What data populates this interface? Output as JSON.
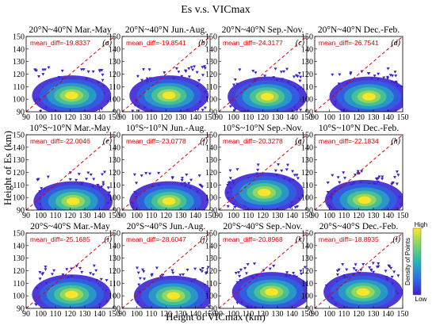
{
  "chart_data": {
    "type": "heatmap",
    "title": "Es v.s. VICmax",
    "xlabel": "Height of VICmax (km)",
    "ylabel": "Height of Es (km)",
    "xlim": [
      90,
      150
    ],
    "ylim": [
      90,
      150
    ],
    "xticks": [
      90,
      100,
      110,
      120,
      130,
      140,
      150
    ],
    "yticks": [
      90,
      100,
      110,
      120,
      130,
      140,
      150
    ],
    "colorbar": {
      "label": "Density of Points",
      "high": "High",
      "low": "Low",
      "colors": [
        "#3b1fd1",
        "#2f6fe6",
        "#25b7b0",
        "#7fd36b",
        "#fde725"
      ]
    },
    "reference_line": {
      "x": [
        90,
        150
      ],
      "y": [
        90,
        150
      ],
      "color": "#e00000",
      "style": "dashed"
    },
    "panels": [
      {
        "label": "20°N~40°N Mar.-May",
        "letter": "(a)",
        "mean_diff": "mean_diff=-19.8337",
        "peak": [
          121,
          103
        ]
      },
      {
        "label": "20°N~40°N Jun.-Aug.",
        "letter": "(b)",
        "mean_diff": "mean_diff=-19.8541",
        "peak": [
          122,
          103
        ]
      },
      {
        "label": "20°N~40°N Sep.-Nov.",
        "letter": "(c)",
        "mean_diff": "mean_diff=-24.3177",
        "peak": [
          123,
          102
        ]
      },
      {
        "label": "20°N~40°N Dec.-Feb.",
        "letter": "(d)",
        "mean_diff": "mean_diff=-26.7541",
        "peak": [
          127,
          102
        ]
      },
      {
        "label": "10°S~10°N Mar.-May",
        "letter": "(e)",
        "mean_diff": "mean_diff=-22.0046",
        "peak": [
          122,
          97
        ]
      },
      {
        "label": "10°S~10°N Jun.-Aug.",
        "letter": "(f)",
        "mean_diff": "mean_diff=-23.0778",
        "peak": [
          122,
          97
        ]
      },
      {
        "label": "10°S~10°N Sep.-Nov.",
        "letter": "(g)",
        "mean_diff": "mean_diff=-20.3278",
        "peak": [
          121,
          104
        ]
      },
      {
        "label": "10°S~10°N Dec.-Feb.",
        "letter": "(h)",
        "mean_diff": "mean_diff=-22.1834",
        "peak": [
          124,
          98
        ]
      },
      {
        "label": "20°S~40°S Mar.-May",
        "letter": "(i)",
        "mean_diff": "mean_diff=-25.1685",
        "peak": [
          121,
          101
        ]
      },
      {
        "label": "20°S~40°S Jun.-Aug.",
        "letter": "(j)",
        "mean_diff": "mean_diff=-28.6047",
        "peak": [
          125,
          100
        ]
      },
      {
        "label": "20°S~40°S Sep.-Nov.",
        "letter": "(k)",
        "mean_diff": "mean_diff=-20.8968",
        "peak": [
          126,
          103
        ]
      },
      {
        "label": "20°S~40°S Dec.-Feb.",
        "letter": "(l)",
        "mean_diff": "mean_diff=-18.8935",
        "peak": [
          123,
          103
        ]
      }
    ]
  }
}
